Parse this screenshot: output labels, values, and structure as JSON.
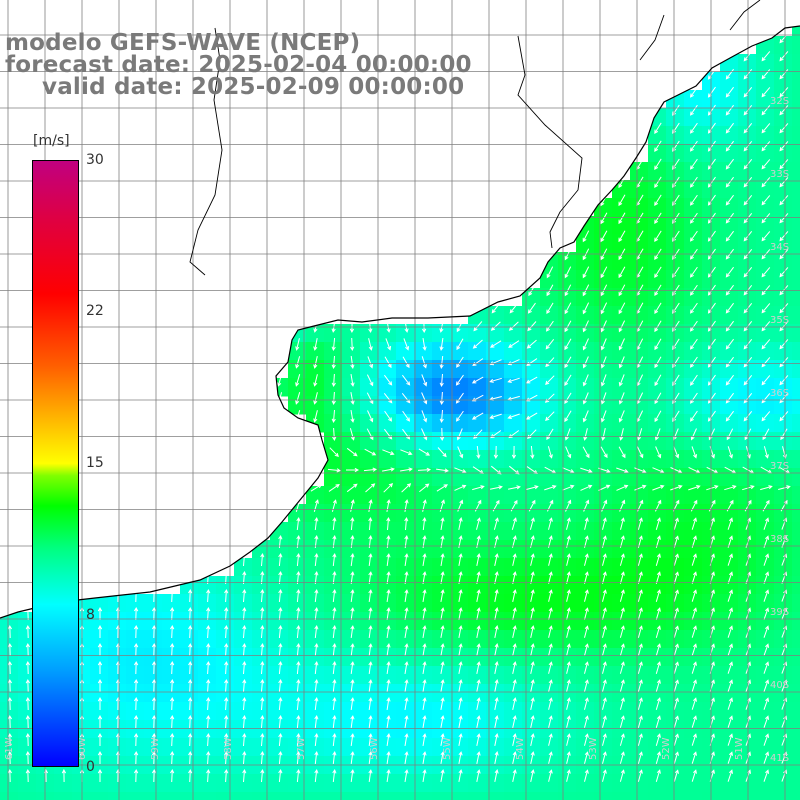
{
  "title": {
    "line1": "modelo GEFS-WAVE (NCEP)",
    "line2": "forecast date: 2025-02-04 00:00:00",
    "line3": "valid date: 2025-02-09 00:00:00"
  },
  "colorbar": {
    "unit": "[m/s]",
    "ticks": [
      "30",
      "22",
      "15",
      "8",
      "0"
    ],
    "tick_values": [
      30,
      22,
      15,
      8,
      0
    ],
    "min": 0,
    "max": 30,
    "colors": [
      "#0000ff",
      "#00a0ff",
      "#00ffff",
      "#00ff00",
      "#ffff00",
      "#ff6000",
      "#ff0000",
      "#c00080"
    ]
  },
  "map": {
    "land_color": "#ffffff",
    "grid_color": "#7f7f7f",
    "coast_color": "#000000",
    "arrow_color": "#ffffff",
    "latitude_labels": [
      "32S",
      "33S",
      "34S",
      "35S",
      "36S",
      "37S",
      "38S",
      "39S",
      "40S",
      "41S"
    ],
    "longitude_labels": [
      "61W",
      "60W",
      "59W",
      "58W",
      "57W",
      "56W",
      "55W",
      "54W",
      "53W",
      "52W",
      "51W"
    ]
  }
}
